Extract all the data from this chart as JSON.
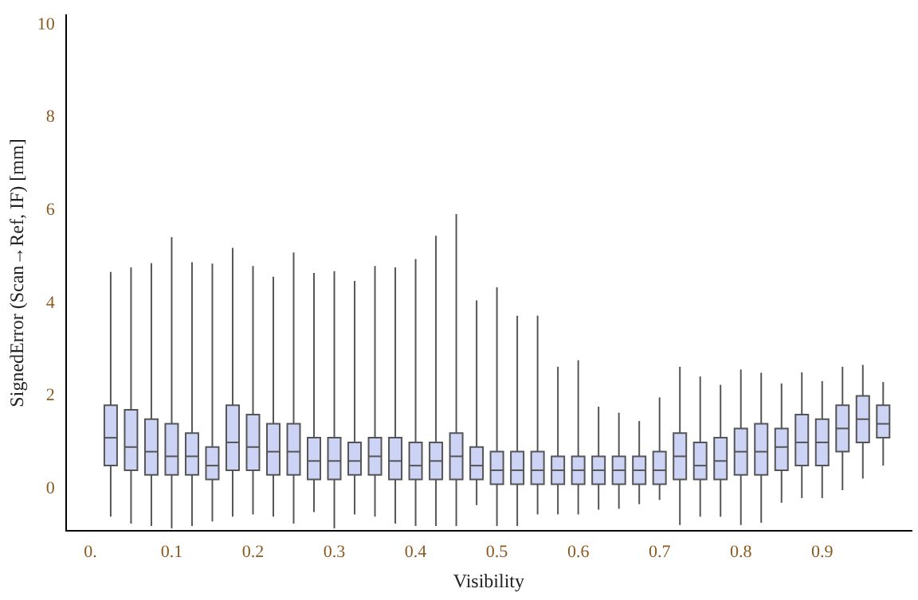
{
  "chart_data": {
    "type": "box",
    "xlabel": "Visibility",
    "ylabel": "SignedError (Scan→Ref, IF) [mm]",
    "x": [
      0.025,
      0.05,
      0.075,
      0.1,
      0.125,
      0.15,
      0.175,
      0.2,
      0.225,
      0.25,
      0.275,
      0.3,
      0.325,
      0.35,
      0.375,
      0.4,
      0.425,
      0.45,
      0.475,
      0.5,
      0.525,
      0.55,
      0.575,
      0.6,
      0.625,
      0.65,
      0.675,
      0.7,
      0.725,
      0.75,
      0.775,
      0.8,
      0.825,
      0.85,
      0.875,
      0.9,
      0.925,
      0.95,
      0.975
    ],
    "color": "#ccd3f5",
    "boxes": [
      {
        "low": -0.6,
        "q1": 0.5,
        "median": 1.1,
        "q3": 1.8,
        "high": 4.67
      },
      {
        "low": -0.75,
        "q1": 0.4,
        "median": 0.9,
        "q3": 1.7,
        "high": 4.77
      },
      {
        "low": -0.8,
        "q1": 0.3,
        "median": 0.8,
        "q3": 1.5,
        "high": 4.86
      },
      {
        "low": -0.85,
        "q1": 0.3,
        "median": 0.7,
        "q3": 1.4,
        "high": 5.42
      },
      {
        "low": -0.8,
        "q1": 0.3,
        "median": 0.7,
        "q3": 1.2,
        "high": 4.88
      },
      {
        "low": -0.7,
        "q1": 0.2,
        "median": 0.5,
        "q3": 0.9,
        "high": 4.85
      },
      {
        "low": -0.6,
        "q1": 0.4,
        "median": 1.0,
        "q3": 1.8,
        "high": 5.19
      },
      {
        "low": -0.55,
        "q1": 0.4,
        "median": 0.9,
        "q3": 1.6,
        "high": 4.8
      },
      {
        "low": -0.6,
        "q1": 0.3,
        "median": 0.8,
        "q3": 1.4,
        "high": 4.57
      },
      {
        "low": -0.75,
        "q1": 0.3,
        "median": 0.8,
        "q3": 1.4,
        "high": 5.09
      },
      {
        "low": -0.5,
        "q1": 0.2,
        "median": 0.6,
        "q3": 1.1,
        "high": 4.65
      },
      {
        "low": -0.85,
        "q1": 0.2,
        "median": 0.6,
        "q3": 1.1,
        "high": 4.69
      },
      {
        "low": -0.55,
        "q1": 0.3,
        "median": 0.6,
        "q3": 1.0,
        "high": 4.48
      },
      {
        "low": -0.6,
        "q1": 0.3,
        "median": 0.7,
        "q3": 1.1,
        "high": 4.8
      },
      {
        "low": -0.75,
        "q1": 0.2,
        "median": 0.6,
        "q3": 1.1,
        "high": 4.77
      },
      {
        "low": -0.8,
        "q1": 0.2,
        "median": 0.5,
        "q3": 1.0,
        "high": 4.95
      },
      {
        "low": -0.8,
        "q1": 0.2,
        "median": 0.6,
        "q3": 1.0,
        "high": 5.45
      },
      {
        "low": -0.8,
        "q1": 0.2,
        "median": 0.7,
        "q3": 1.2,
        "high": 5.92
      },
      {
        "low": -0.35,
        "q1": 0.2,
        "median": 0.5,
        "q3": 0.9,
        "high": 4.06
      },
      {
        "low": -0.8,
        "q1": 0.1,
        "median": 0.4,
        "q3": 0.8,
        "high": 4.34
      },
      {
        "low": -0.8,
        "q1": 0.1,
        "median": 0.4,
        "q3": 0.8,
        "high": 3.73
      },
      {
        "low": -0.55,
        "q1": 0.1,
        "median": 0.4,
        "q3": 0.8,
        "high": 3.73
      },
      {
        "low": -0.55,
        "q1": 0.1,
        "median": 0.4,
        "q3": 0.7,
        "high": 2.63
      },
      {
        "low": -0.55,
        "q1": 0.1,
        "median": 0.4,
        "q3": 0.7,
        "high": 2.77
      },
      {
        "low": -0.45,
        "q1": 0.1,
        "median": 0.4,
        "q3": 0.7,
        "high": 1.77
      },
      {
        "low": -0.43,
        "q1": 0.1,
        "median": 0.4,
        "q3": 0.7,
        "high": 1.64
      },
      {
        "low": -0.33,
        "q1": 0.1,
        "median": 0.4,
        "q3": 0.7,
        "high": 1.46
      },
      {
        "low": -0.24,
        "q1": 0.1,
        "median": 0.4,
        "q3": 0.8,
        "high": 1.97
      },
      {
        "low": -0.78,
        "q1": 0.2,
        "median": 0.7,
        "q3": 1.2,
        "high": 2.63
      },
      {
        "low": -0.6,
        "q1": 0.2,
        "median": 0.5,
        "q3": 1.0,
        "high": 2.42
      },
      {
        "low": -0.6,
        "q1": 0.2,
        "median": 0.6,
        "q3": 1.1,
        "high": 2.24
      },
      {
        "low": -0.78,
        "q1": 0.3,
        "median": 0.8,
        "q3": 1.3,
        "high": 2.57
      },
      {
        "low": -0.73,
        "q1": 0.3,
        "median": 0.8,
        "q3": 1.4,
        "high": 2.5
      },
      {
        "low": -0.3,
        "q1": 0.4,
        "median": 0.9,
        "q3": 1.3,
        "high": 2.27
      },
      {
        "low": -0.2,
        "q1": 0.5,
        "median": 1.0,
        "q3": 1.6,
        "high": 2.51
      },
      {
        "low": -0.2,
        "q1": 0.5,
        "median": 1.0,
        "q3": 1.5,
        "high": 2.32
      },
      {
        "low": -0.03,
        "q1": 0.8,
        "median": 1.3,
        "q3": 1.8,
        "high": 2.63
      },
      {
        "low": 0.22,
        "q1": 1.0,
        "median": 1.5,
        "q3": 2.0,
        "high": 2.67
      },
      {
        "low": 0.5,
        "q1": 1.1,
        "median": 1.4,
        "q3": 1.8,
        "high": 2.3
      }
    ],
    "xlim": [
      -0.03,
      1.01
    ],
    "ylim": [
      -0.9,
      10.2
    ],
    "xticks": [
      {
        "value": 0,
        "label": "0."
      },
      0.1,
      0.2,
      0.3,
      0.4,
      0.5,
      0.6,
      0.7,
      0.8,
      0.9
    ],
    "yticks": [
      0,
      2,
      4,
      6,
      8,
      10
    ],
    "grid": false,
    "legend": false
  }
}
